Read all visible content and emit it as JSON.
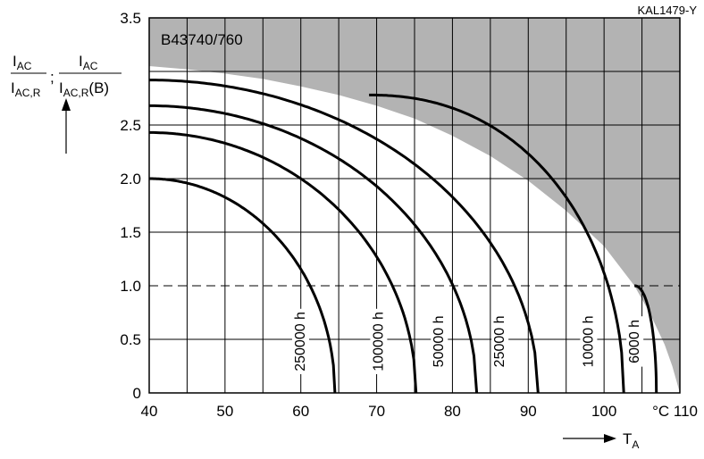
{
  "reference": "KAL1479-Y",
  "chart_data": {
    "type": "line",
    "title": "B43740/760",
    "x_axis": {
      "label": "T",
      "label_subscript": "A",
      "unit": "°C",
      "range": [
        40,
        110
      ],
      "tick_labels": [
        "40",
        "50",
        "60",
        "70",
        "80",
        "90",
        "100",
        "°C 110"
      ],
      "minor_step": 5
    },
    "y_axis": {
      "label": {
        "num1": "I",
        "num1_sub": "AC",
        "den1": "I",
        "den1_sub": "AC,R",
        "separator": ";",
        "num2": "I",
        "num2_sub": "AC",
        "den2": "I",
        "den2_sub": "AC,R",
        "den2_suffix": "(B)"
      },
      "range": [
        0,
        3.5
      ],
      "tick_labels": [
        "0",
        "0.5",
        "1.0",
        "1.5",
        "2.0",
        "2.5",
        "3.5"
      ],
      "gridlines": [
        0.5,
        1.0,
        1.5,
        2.0,
        2.5,
        3.0
      ]
    },
    "reference_line": {
      "y": 1.0,
      "style": "dashed"
    },
    "forbidden_region": {
      "fill": "#b3b3b3",
      "boundary": [
        [
          40,
          3.05
        ],
        [
          45,
          3.02
        ],
        [
          50,
          2.98
        ],
        [
          55,
          2.93
        ],
        [
          60,
          2.86
        ],
        [
          65,
          2.78
        ],
        [
          70,
          2.68
        ],
        [
          75,
          2.56
        ],
        [
          80,
          2.4
        ],
        [
          85,
          2.21
        ],
        [
          90,
          1.98
        ],
        [
          95,
          1.7
        ],
        [
          100,
          1.37
        ],
        [
          104,
          1.0
        ],
        [
          106,
          0.75
        ],
        [
          108,
          0.45
        ],
        [
          109,
          0.25
        ],
        [
          110,
          0.0
        ]
      ]
    },
    "series": [
      {
        "label": "250000 h",
        "start_x": 40,
        "start_y": 2.0,
        "t0": 64.5,
        "exp": 2,
        "label_x": 60.5
      },
      {
        "label": "100000 h",
        "start_x": 40,
        "start_y": 2.43,
        "t0": 75.2,
        "exp": 2,
        "label_x": 70.8
      },
      {
        "label": "50000 h",
        "start_x": 40,
        "start_y": 2.68,
        "t0": 83.2,
        "exp": 2,
        "label_x": 78.8
      },
      {
        "label": "25000 h",
        "start_x": 40,
        "start_y": 2.92,
        "t0": 91.3,
        "exp": 2,
        "label_x": 86.8
      },
      {
        "label": "10000 h",
        "start_x": 69,
        "start_y": 2.78,
        "t0": 102.6,
        "exp": 2.2,
        "label_x": 98.5
      },
      {
        "label": "6000 h",
        "start_x": 104,
        "start_y": 1.0,
        "t0": 106.9,
        "exp": 2.2,
        "label_x": 104.6
      }
    ]
  }
}
